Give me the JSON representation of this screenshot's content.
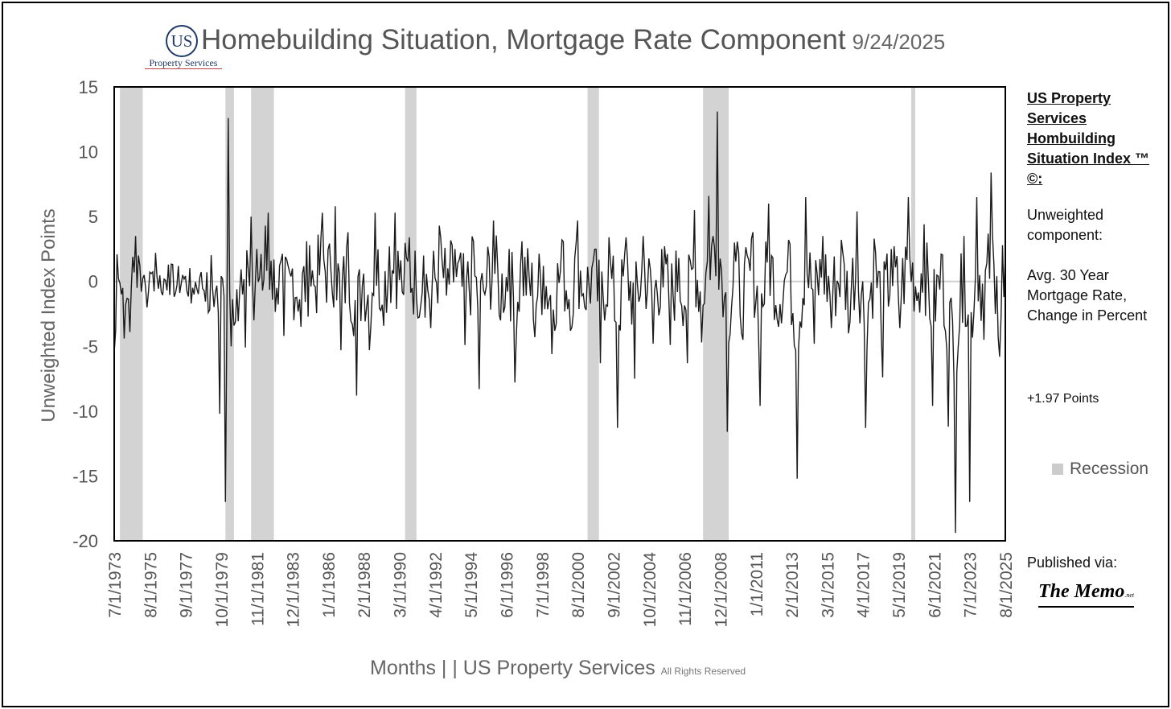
{
  "logo": {
    "mark": "US",
    "name": "Property Services"
  },
  "header": {
    "title": "Homebuilding Situation, Mortgage Rate Component",
    "date": "9/24/2025"
  },
  "sidebar": {
    "heading": "US Property Services Hombuilding Situation Index ™ ©:",
    "component_label": "Unweighted component:",
    "component_name": "Avg. 30 Year Mortgage Rate, Change in Percent",
    "latest_value": "+1.97 Points"
  },
  "legend": {
    "recession_label": "Recession"
  },
  "published": {
    "label": "Published via:",
    "outlet": "The Memo",
    "outlet_suffix": ".net"
  },
  "footer": {
    "text": "Months |  | US Property Services",
    "rights": "All Rights Reserved"
  },
  "chart_data": {
    "type": "line",
    "title": "Homebuilding Situation, Mortgage Rate Component",
    "xlabel": "Months |  | US Property Services",
    "ylabel": "Unweighted Index Points",
    "ylim": [
      -20,
      15
    ],
    "yticks": [
      15,
      10,
      5,
      0,
      -5,
      -10,
      -15,
      -20
    ],
    "xlim": [
      "1973-07",
      "2025-08"
    ],
    "x_tick_labels": [
      "7/1/1973",
      "8/1/1975",
      "9/1/1977",
      "10/1/1979",
      "11/1/1981",
      "12/1/1983",
      "1/1/1986",
      "2/1/1988",
      "3/1/1990",
      "4/1/1992",
      "5/1/1994",
      "6/1/1996",
      "7/1/1998",
      "8/1/2000",
      "9/1/2002",
      "10/1/2004",
      "11/1/2006",
      "12/1/2008",
      "1/1/2011",
      "2/1/2013",
      "3/1/2015",
      "4/1/2017",
      "5/1/2019",
      "6/1/2021",
      "7/1/2023",
      "8/1/2025"
    ],
    "recessions": [
      [
        "1973-11",
        "1975-03"
      ],
      [
        "1980-01",
        "1980-07"
      ],
      [
        "1981-07",
        "1982-11"
      ],
      [
        "1990-07",
        "1991-03"
      ],
      [
        "2001-03",
        "2001-11"
      ],
      [
        "2007-12",
        "2009-06"
      ],
      [
        "2020-02",
        "2020-04"
      ]
    ],
    "series": [
      {
        "name": "Avg. 30 Year Mortgage Rate, Change in Percent",
        "color": "#1a1a1a",
        "points": [
          [
            "1973-07",
            -5.5
          ],
          [
            "1973-08",
            -3.8
          ],
          [
            "1973-09",
            2.1
          ],
          [
            "1973-10",
            0.2
          ],
          [
            "1973-12",
            -1.0
          ],
          [
            "1974-02",
            -4.4
          ],
          [
            "1974-04",
            -1.3
          ],
          [
            "1974-06",
            -3.9
          ],
          [
            "1974-08",
            1.9
          ],
          [
            "1974-10",
            3.5
          ],
          [
            "1974-12",
            2.0
          ],
          [
            "1975-02",
            -0.8
          ],
          [
            "1975-04",
            0.5
          ],
          [
            "1975-06",
            -2.0
          ],
          [
            "1975-09",
            0.6
          ],
          [
            "1975-12",
            2.2
          ],
          [
            "1976-04",
            -0.8
          ],
          [
            "1976-09",
            1.3
          ],
          [
            "1977-02",
            -0.9
          ],
          [
            "1977-07",
            0.5
          ],
          [
            "1978-01",
            -1.7
          ],
          [
            "1978-07",
            0.3
          ],
          [
            "1979-01",
            -2.4
          ],
          [
            "1979-06",
            -0.8
          ],
          [
            "1979-09",
            -10.2
          ],
          [
            "1979-11",
            0.2
          ],
          [
            "1980-01",
            -17.0
          ],
          [
            "1980-03",
            12.6
          ],
          [
            "1980-05",
            -5.0
          ],
          [
            "1980-07",
            -3.4
          ],
          [
            "1980-09",
            -0.6
          ],
          [
            "1981-01",
            -1.0
          ],
          [
            "1981-03",
            -5.1
          ],
          [
            "1981-05",
            1.0
          ],
          [
            "1981-07",
            5.0
          ],
          [
            "1981-09",
            -3.0
          ],
          [
            "1981-11",
            2.5
          ],
          [
            "1982-01",
            0.3
          ],
          [
            "1982-03",
            -0.7
          ],
          [
            "1982-05",
            4.3
          ],
          [
            "1982-07",
            5.3
          ],
          [
            "1982-09",
            1.6
          ],
          [
            "1983-01",
            -0.5
          ],
          [
            "1983-06",
            -4.2
          ],
          [
            "1983-12",
            1.0
          ],
          [
            "1984-06",
            -3.5
          ],
          [
            "1984-12",
            2.8
          ],
          [
            "1985-04",
            -0.4
          ],
          [
            "1985-09",
            5.3
          ],
          [
            "1986-03",
            0.8
          ],
          [
            "1986-06",
            5.8
          ],
          [
            "1986-10",
            -5.3
          ],
          [
            "1987-03",
            3.8
          ],
          [
            "1987-09",
            -8.8
          ],
          [
            "1988-02",
            0.6
          ],
          [
            "1988-06",
            -5.3
          ],
          [
            "1988-10",
            5.3
          ],
          [
            "1989-03",
            -1.8
          ],
          [
            "1989-08",
            2.7
          ],
          [
            "1989-12",
            5.3
          ],
          [
            "1990-05",
            -0.8
          ],
          [
            "1990-10",
            3.4
          ],
          [
            "1991-03",
            -1.2
          ],
          [
            "1991-08",
            2.0
          ],
          [
            "1992-01",
            -3.6
          ],
          [
            "1992-07",
            4.3
          ],
          [
            "1992-12",
            -1.1
          ],
          [
            "1993-06",
            2.5
          ],
          [
            "1994-01",
            -4.9
          ],
          [
            "1994-07",
            3.1
          ],
          [
            "1994-11",
            -8.3
          ],
          [
            "1995-03",
            -1.0
          ],
          [
            "1995-09",
            4.7
          ],
          [
            "1996-02",
            -3.0
          ],
          [
            "1996-08",
            2.5
          ],
          [
            "1996-12",
            -7.8
          ],
          [
            "1997-05",
            3.1
          ],
          [
            "1998-02",
            -4.3
          ],
          [
            "1998-08",
            1.2
          ],
          [
            "1999-02",
            -5.6
          ],
          [
            "1999-09",
            3.2
          ],
          [
            "2000-03",
            -3.8
          ],
          [
            "2000-08",
            4.7
          ],
          [
            "2001-02",
            -2.2
          ],
          [
            "2001-07",
            1.6
          ],
          [
            "2001-12",
            -6.3
          ],
          [
            "2002-06",
            3.4
          ],
          [
            "2002-12",
            -11.3
          ],
          [
            "2003-06",
            3.4
          ],
          [
            "2003-12",
            -7.5
          ],
          [
            "2004-06",
            3.5
          ],
          [
            "2005-01",
            -4.8
          ],
          [
            "2005-07",
            2.5
          ],
          [
            "2006-01",
            -4.9
          ],
          [
            "2006-07",
            1.8
          ],
          [
            "2007-01",
            -6.3
          ],
          [
            "2007-06",
            5.5
          ],
          [
            "2007-11",
            -4.7
          ],
          [
            "2008-04",
            6.6
          ],
          [
            "2008-10",
            13.1
          ],
          [
            "2009-03",
            -1.2
          ],
          [
            "2009-05",
            -11.6
          ],
          [
            "2009-10",
            3.0
          ],
          [
            "2010-04",
            -4.5
          ],
          [
            "2010-11",
            3.8
          ],
          [
            "2011-04",
            -9.6
          ],
          [
            "2011-10",
            6.0
          ],
          [
            "2012-05",
            -3.5
          ],
          [
            "2012-12",
            3.2
          ],
          [
            "2013-06",
            -15.2
          ],
          [
            "2013-12",
            6.5
          ],
          [
            "2014-06",
            -4.8
          ],
          [
            "2014-12",
            3.5
          ],
          [
            "2015-06",
            -3.6
          ],
          [
            "2016-01",
            3.2
          ],
          [
            "2016-06",
            -4.0
          ],
          [
            "2016-12",
            5.4
          ],
          [
            "2017-06",
            -11.3
          ],
          [
            "2017-12",
            3.3
          ],
          [
            "2018-06",
            -7.4
          ],
          [
            "2018-12",
            2.5
          ],
          [
            "2019-06",
            -3.6
          ],
          [
            "2019-12",
            6.5
          ],
          [
            "2020-06",
            -1.5
          ],
          [
            "2020-11",
            4.4
          ],
          [
            "2021-05",
            -9.6
          ],
          [
            "2021-11",
            2.1
          ],
          [
            "2022-04",
            -11.2
          ],
          [
            "2022-09",
            -19.4
          ],
          [
            "2023-03",
            3.5
          ],
          [
            "2023-07",
            -17.0
          ],
          [
            "2023-12",
            6.5
          ],
          [
            "2024-05",
            -4.5
          ],
          [
            "2024-10",
            8.4
          ],
          [
            "2025-01",
            -2.5
          ],
          [
            "2025-04",
            -5.8
          ],
          [
            "2025-06",
            2.8
          ],
          [
            "2025-07",
            -1.2
          ],
          [
            "2025-08",
            1.97
          ]
        ]
      }
    ]
  }
}
